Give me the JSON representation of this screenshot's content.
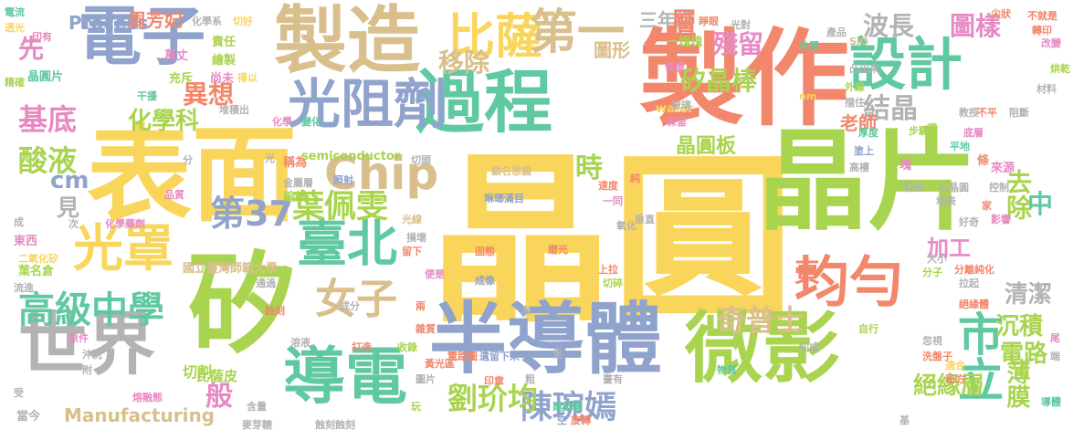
{
  "words": [
    {
      "text": "晶圓",
      "color": "#f9d65b"
    },
    {
      "text": "晶片",
      "color": "#a9d44f"
    },
    {
      "text": "表面",
      "color": "#f9d65b"
    },
    {
      "text": "製作",
      "color": "#f2876b"
    },
    {
      "text": "製造",
      "color": "#d9bf8c"
    },
    {
      "text": "半導體",
      "color": "#8fa3cd"
    },
    {
      "text": "矽",
      "color": "#a9d44f"
    },
    {
      "text": "電子",
      "color": "#8fa3cd"
    },
    {
      "text": "過程",
      "color": "#60c9a1"
    },
    {
      "text": "設計",
      "color": "#60c9a1"
    },
    {
      "text": "微影",
      "color": "#a9d44f"
    },
    {
      "text": "均勻",
      "color": "#f2876b"
    },
    {
      "text": "世界",
      "color": "#b3b3b3"
    },
    {
      "text": "光阻劑",
      "color": "#8fa3cd"
    },
    {
      "text": "導電",
      "color": "#60c9a1"
    },
    {
      "text": "臺北",
      "color": "#60c9a1"
    },
    {
      "text": "市立",
      "color": "#60c9a1"
    },
    {
      "text": "光罩",
      "color": "#f9d65b"
    },
    {
      "text": "比薩",
      "color": "#f9d65b"
    },
    {
      "text": "女子",
      "color": "#d9bf8c"
    },
    {
      "text": "Chip",
      "color": "#d9bf8c"
    },
    {
      "text": "高級中學",
      "color": "#60c9a1"
    },
    {
      "text": "陳琬嫣",
      "color": "#8fa3cd"
    },
    {
      "text": "劉玠均",
      "color": "#a9d44f"
    },
    {
      "text": "第37",
      "color": "#8fa3cd"
    },
    {
      "text": "葉佩雯",
      "color": "#a9d44f"
    },
    {
      "text": "奇普士",
      "color": "#d9bf8c"
    },
    {
      "text": "基底",
      "color": "#e78ac3"
    },
    {
      "text": "酸液",
      "color": "#a9d44f"
    },
    {
      "text": "異想",
      "color": "#f2876b"
    },
    {
      "text": "化學科",
      "color": "#a9d44f"
    },
    {
      "text": "移除",
      "color": "#d9bf8c"
    },
    {
      "text": "第一",
      "color": "#d9bf8c"
    },
    {
      "text": "矽晶棒",
      "color": "#a9d44f"
    },
    {
      "text": "三年級",
      "color": "#b3b3b3"
    },
    {
      "text": "層",
      "color": "#f2876b"
    },
    {
      "text": "殘留",
      "color": "#e78ac3"
    },
    {
      "text": "波長",
      "color": "#b3b3b3"
    },
    {
      "text": "圖樣",
      "color": "#e78ac3"
    },
    {
      "text": "結晶",
      "color": "#b3b3b3"
    },
    {
      "text": "去除",
      "color": "#a9d44f"
    },
    {
      "text": "中",
      "color": "#60c9a1"
    },
    {
      "text": "清潔",
      "color": "#b3b3b3"
    },
    {
      "text": "沉積",
      "color": "#a9d44f"
    },
    {
      "text": "電路",
      "color": "#a9d44f"
    },
    {
      "text": "薄膜",
      "color": "#a9d44f"
    },
    {
      "text": "絕緣層",
      "color": "#a9d44f"
    },
    {
      "text": "晶圓板",
      "color": "#a9d44f"
    },
    {
      "text": "時",
      "color": "#a9d44f"
    },
    {
      "text": "圖形",
      "color": "#d9bf8c"
    },
    {
      "text": "老師",
      "color": "#f2876b"
    },
    {
      "text": "先",
      "color": "#e78ac3"
    },
    {
      "text": "見",
      "color": "#b3b3b3"
    },
    {
      "text": "cm",
      "color": "#8fa3cd"
    },
    {
      "text": "Process",
      "color": "#8fa3cd"
    },
    {
      "text": "周芳妃",
      "color": "#f2876b"
    },
    {
      "text": "加工",
      "color": "#e78ac3"
    },
    {
      "text": "頁",
      "color": "#f2876b"
    },
    {
      "text": "般",
      "color": "#e78ac3"
    },
    {
      "text": "Manufacturing",
      "color": "#d9bf8c"
    },
    {
      "text": "比薩皮",
      "color": "#a9d44f"
    },
    {
      "text": "切割",
      "color": "#a9d44f"
    },
    {
      "text": "國立臺灣師範大學",
      "color": "#d9bf8c"
    },
    {
      "text": "semiconductor",
      "color": "#a9d44f"
    },
    {
      "text": "wafer",
      "color": "#f9d65b"
    },
    {
      "text": "葉名倉",
      "color": "#a9d44f"
    },
    {
      "text": "東西",
      "color": "#e78ac3"
    },
    {
      "text": "二氧化矽",
      "color": "#f9d65b"
    },
    {
      "text": "化學藥劑",
      "color": "#e78ac3"
    },
    {
      "text": "編輯",
      "color": "#a9d44f"
    },
    {
      "text": "切頭",
      "color": "#b3b3b3"
    },
    {
      "text": "稱為",
      "color": "#f2876b"
    },
    {
      "text": "金屬層",
      "color": "#b3b3b3"
    },
    {
      "text": "照射",
      "color": "#8fa3cd"
    },
    {
      "text": "責任",
      "color": "#a9d44f"
    },
    {
      "text": "繪製",
      "color": "#a9d44f"
    },
    {
      "text": "充斥",
      "color": "#a9d44f"
    },
    {
      "text": "尚未",
      "color": "#e78ac3"
    },
    {
      "text": "萬丈",
      "color": "#e78ac3"
    },
    {
      "text": "切好",
      "color": "#f9d65b"
    },
    {
      "text": "化學系",
      "color": "#b3b3b3"
    },
    {
      "text": "電流",
      "color": "#60c9a1"
    },
    {
      "text": "透光",
      "color": "#f9d65b"
    },
    {
      "text": "印有",
      "color": "#e78ac3"
    },
    {
      "text": "晶圓片",
      "color": "#60c9a1"
    },
    {
      "text": "精確",
      "color": "#a9d44f"
    },
    {
      "text": "干擾",
      "color": "#60c9a1"
    },
    {
      "text": "得以",
      "color": "#f9d65b"
    },
    {
      "text": "堆積出",
      "color": "#b3b3b3"
    },
    {
      "text": "化學",
      "color": "#e78ac3"
    },
    {
      "text": "變化",
      "color": "#60c9a1"
    },
    {
      "text": "一塊塊",
      "color": "#a9d44f"
    },
    {
      "text": "玻璃",
      "color": "#b3b3b3"
    },
    {
      "text": "保留",
      "color": "#e78ac3"
    },
    {
      "text": "傻傻",
      "color": "#e78ac3"
    },
    {
      "text": "睜眼",
      "color": "#f2876b"
    },
    {
      "text": "光對",
      "color": "#b3b3b3"
    },
    {
      "text": "尖狀",
      "color": "#f2876b"
    },
    {
      "text": "不就是",
      "color": "#f2876b"
    },
    {
      "text": "轉印",
      "color": "#f2876b"
    },
    {
      "text": "改變",
      "color": "#e78ac3"
    },
    {
      "text": "材料",
      "color": "#b3b3b3"
    },
    {
      "text": "產品",
      "color": "#b3b3b3"
    },
    {
      "text": "性質",
      "color": "#60c9a1"
    },
    {
      "text": "SiO",
      "color": "#d9bf8c"
    },
    {
      "text": "凸出來",
      "color": "#b3b3b3"
    },
    {
      "text": "外線",
      "color": "#a9d44f"
    },
    {
      "text": "擋住",
      "color": "#b3b3b3"
    },
    {
      "text": "教授",
      "color": "#b3b3b3"
    },
    {
      "text": "不平",
      "color": "#f2876b"
    },
    {
      "text": "阻斷",
      "color": "#b3b3b3"
    },
    {
      "text": "烘乾",
      "color": "#a9d44f"
    },
    {
      "text": "厚度",
      "color": "#60c9a1"
    },
    {
      "text": "步驟",
      "color": "#a9d44f"
    },
    {
      "text": "滿",
      "color": "#a9d44f"
    },
    {
      "text": "底層",
      "color": "#e78ac3"
    },
    {
      "text": "平地",
      "color": "#60c9a1"
    },
    {
      "text": "塗上",
      "color": "#8fa3cd"
    },
    {
      "text": "高樓",
      "color": "#b3b3b3"
    },
    {
      "text": "塊",
      "color": "#e78ac3"
    },
    {
      "text": "條",
      "color": "#f2876b"
    },
    {
      "text": "來源",
      "color": "#e78ac3"
    },
    {
      "text": "特性",
      "color": "#b3b3b3"
    },
    {
      "text": "白晶圓",
      "color": "#b3b3b3"
    },
    {
      "text": "控制",
      "color": "#b3b3b3"
    },
    {
      "text": "地表",
      "color": "#b3b3b3"
    },
    {
      "text": "好奇",
      "color": "#b3b3b3"
    },
    {
      "text": "影響",
      "color": "#e78ac3"
    },
    {
      "text": "家",
      "color": "#f2876b"
    },
    {
      "text": "分子",
      "color": "#a9d44f"
    },
    {
      "text": "分離純化",
      "color": "#f2876b"
    },
    {
      "text": "大小",
      "color": "#b3b3b3"
    },
    {
      "text": "拉起",
      "color": "#b3b3b3"
    },
    {
      "text": "自行",
      "color": "#a9d44f"
    },
    {
      "text": "絕緣體",
      "color": "#f2876b"
    },
    {
      "text": "忽視",
      "color": "#b3b3b3"
    },
    {
      "text": "洗盤子",
      "color": "#f2876b"
    },
    {
      "text": "適合",
      "color": "#f9d65b"
    },
    {
      "text": "秘方",
      "color": "#f2876b"
    },
    {
      "text": "尾",
      "color": "#e78ac3"
    },
    {
      "text": "端",
      "color": "#b3b3b3"
    },
    {
      "text": "導體",
      "color": "#60c9a1"
    },
    {
      "text": "基",
      "color": "#b3b3b3"
    },
    {
      "text": "物質",
      "color": "#60c9a1"
    },
    {
      "text": "切成",
      "color": "#b3b3b3"
    },
    {
      "text": "氧化",
      "color": "#b3b3b3"
    },
    {
      "text": "上拉",
      "color": "#f2876b"
    },
    {
      "text": "切碎",
      "color": "#a9d44f"
    },
    {
      "text": "垂直",
      "color": "#b3b3b3"
    },
    {
      "text": "一同",
      "color": "#e78ac3"
    },
    {
      "text": "速度",
      "color": "#f2876b"
    },
    {
      "text": "純",
      "color": "#f2876b"
    },
    {
      "text": "顧名思義",
      "color": "#d9bf8c"
    },
    {
      "text": "琳瑯滿目",
      "color": "#8fa3cd"
    },
    {
      "text": "固態",
      "color": "#f2876b"
    },
    {
      "text": "磨光",
      "color": "#f2876b"
    },
    {
      "text": "成像",
      "color": "#8fa3cd"
    },
    {
      "text": "凹凸",
      "color": "#f9d65b"
    },
    {
      "text": "遺留下來",
      "color": "#8fa3cd"
    },
    {
      "text": "電路圖",
      "color": "#f2876b"
    },
    {
      "text": "呈",
      "color": "#b3b3b3"
    },
    {
      "text": "水",
      "color": "#b3b3b3"
    },
    {
      "text": "粗",
      "color": "#b3b3b3"
    },
    {
      "text": "畫有",
      "color": "#b3b3b3"
    },
    {
      "text": "黃光區",
      "color": "#f2876b"
    },
    {
      "text": "印章",
      "color": "#f2876b"
    },
    {
      "text": "建築學",
      "color": "#60c9a1"
    },
    {
      "text": "旋轉",
      "color": "#f2876b"
    },
    {
      "text": "空",
      "color": "#8fa3cd"
    },
    {
      "text": "雜質",
      "color": "#f2876b"
    },
    {
      "text": "兩",
      "color": "#f2876b"
    },
    {
      "text": "成分",
      "color": "#b3b3b3"
    },
    {
      "text": "收錄",
      "color": "#a9d44f"
    },
    {
      "text": "打造",
      "color": "#f2876b"
    },
    {
      "text": "便是",
      "color": "#e78ac3"
    },
    {
      "text": "光線",
      "color": "#d9bf8c"
    },
    {
      "text": "損壞",
      "color": "#b3b3b3"
    },
    {
      "text": "留下",
      "color": "#f2876b"
    },
    {
      "text": "通過",
      "color": "#b3b3b3"
    },
    {
      "text": "蝕刻",
      "color": "#f2876b"
    },
    {
      "text": "溶液",
      "color": "#b3b3b3"
    },
    {
      "text": "圖片",
      "color": "#b3b3b3"
    },
    {
      "text": "蝕刻蝕刻",
      "color": "#b3b3b3"
    },
    {
      "text": "麥芽糖",
      "color": "#b3b3b3"
    },
    {
      "text": "含量",
      "color": "#b3b3b3"
    },
    {
      "text": "熔融態",
      "color": "#e78ac3"
    },
    {
      "text": "玩",
      "color": "#a9d44f"
    },
    {
      "text": "當今",
      "color": "#b3b3b3"
    },
    {
      "text": "受",
      "color": "#b3b3b3"
    },
    {
      "text": "附",
      "color": "#b3b3b3"
    },
    {
      "text": "沖洗",
      "color": "#b3b3b3"
    },
    {
      "text": "原件",
      "color": "#e78ac3"
    },
    {
      "text": "流進",
      "color": "#b3b3b3"
    },
    {
      "text": "成",
      "color": "#b3b3b3"
    },
    {
      "text": "次",
      "color": "#b3b3b3"
    },
    {
      "text": "品質",
      "color": "#e78ac3"
    },
    {
      "text": "分",
      "color": "#b3b3b3"
    },
    {
      "text": "光",
      "color": "#b3b3b3"
    },
    {
      "text": "nm",
      "color": "#f9d65b"
    }
  ]
}
